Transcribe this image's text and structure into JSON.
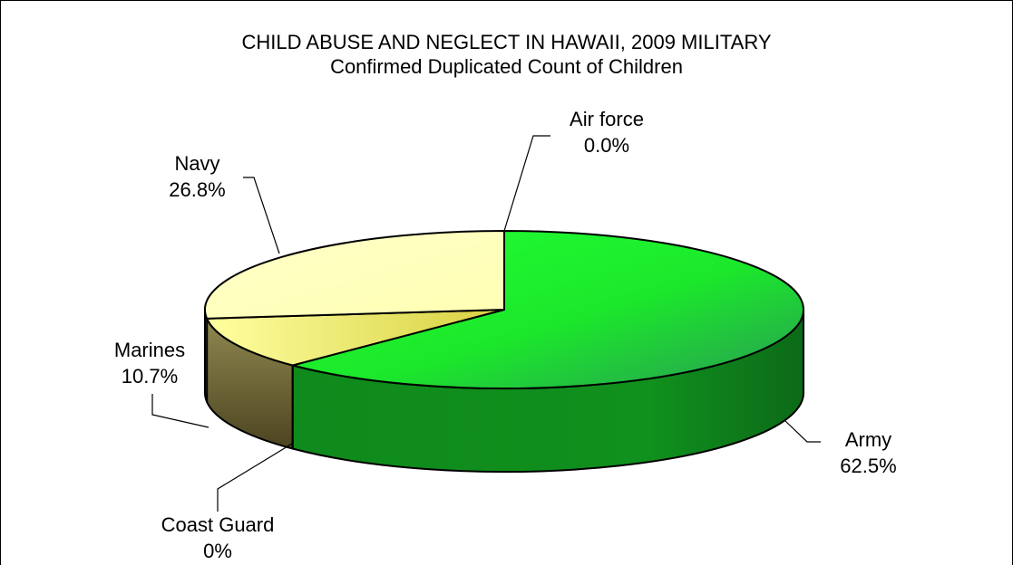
{
  "chart_data": {
    "type": "pie",
    "title": "CHILD ABUSE AND NEGLECT IN HAWAII, 2009 MILITARY",
    "subtitle": "Confirmed Duplicated Count of Children",
    "style": "3d",
    "slices": [
      {
        "key": "army",
        "label": "Army",
        "value": 62.5,
        "value_label": "62.5%",
        "color": "#1aee2c",
        "side_color": "#128a1e"
      },
      {
        "key": "coast",
        "label": "Coast Guard",
        "value": 0,
        "value_label": "0%",
        "color": "#888888",
        "side_color": "#666666"
      },
      {
        "key": "marines",
        "label": "Marines",
        "value": 10.7,
        "value_label": "10.7%",
        "color": "#e7e27a",
        "side_color": "#817a43"
      },
      {
        "key": "navy",
        "label": "Navy",
        "value": 26.8,
        "value_label": "26.8%",
        "color": "#ffffc8",
        "side_color": "#d8d8a0"
      },
      {
        "key": "airforce",
        "label": "Air force",
        "value": 0.0,
        "value_label": "0.0%",
        "color": "#3366cc",
        "side_color": "#224488"
      }
    ]
  }
}
